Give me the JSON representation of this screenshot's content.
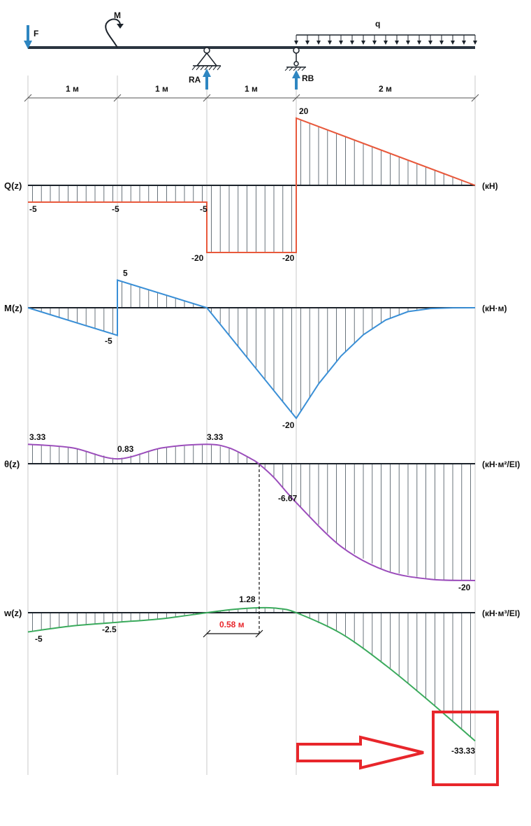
{
  "beam": {
    "force_label": "F",
    "moment_label": "M",
    "load_label": "q",
    "support_a_label": "RA",
    "support_b_label": "RB",
    "spans": [
      "1 м",
      "1 м",
      "1 м",
      "2 м"
    ]
  },
  "colors": {
    "beam": "#2b3540",
    "arrow": "#2e86c1",
    "shear": "#e8593c",
    "moment": "#3a8fd6",
    "slope": "#9b4dbb",
    "deflection": "#3aaa5c",
    "hatch": "#44505a",
    "highlight": "#e8262b",
    "grid": "#c8c8c8"
  },
  "chart_data": [
    {
      "type": "area",
      "name": "shear",
      "label": "Q(z)",
      "unit": "(кН)",
      "x_ticks": [
        0,
        1,
        2,
        3,
        5
      ],
      "points": [
        [
          0,
          -5
        ],
        [
          1,
          -5
        ],
        [
          2,
          -5
        ],
        [
          2,
          -20
        ],
        [
          3,
          -20
        ],
        [
          3,
          20
        ],
        [
          5,
          0
        ]
      ],
      "annotations": [
        {
          "x": 0,
          "y": -5,
          "text": "-5"
        },
        {
          "x": 1,
          "y": -5,
          "text": "-5"
        },
        {
          "x": 2,
          "y": -5,
          "text": "-5"
        },
        {
          "x": 2,
          "y": -20,
          "text": "-20"
        },
        {
          "x": 3,
          "y": -20,
          "text": "-20"
        },
        {
          "x": 3,
          "y": 20,
          "text": "20"
        }
      ]
    },
    {
      "type": "area",
      "name": "moment",
      "label": "M(z)",
      "unit": "(кН·м)",
      "points": [
        [
          0,
          0
        ],
        [
          1,
          -5
        ],
        [
          1,
          5
        ],
        [
          2,
          0
        ],
        [
          3,
          -20
        ],
        [
          3.25,
          -13.78
        ],
        [
          3.5,
          -8.75
        ],
        [
          3.75,
          -4.9
        ],
        [
          4,
          -2.22
        ],
        [
          4.25,
          -0.7
        ],
        [
          4.5,
          -0.14
        ],
        [
          4.75,
          -0.01
        ],
        [
          5,
          0
        ]
      ],
      "annotations": [
        {
          "x": 1,
          "y": -5,
          "text": "-5"
        },
        {
          "x": 1,
          "y": 5,
          "text": "5"
        },
        {
          "x": 3,
          "y": -20,
          "text": "-20"
        }
      ]
    },
    {
      "type": "area",
      "name": "slope",
      "label": "θ(z)",
      "unit": "(кН·м²/EI)",
      "points": [
        [
          0,
          3.33
        ],
        [
          0.5,
          2.71
        ],
        [
          1,
          0.83
        ],
        [
          1.5,
          2.71
        ],
        [
          2,
          3.33
        ],
        [
          2.25,
          2.7
        ],
        [
          2.5,
          0.8
        ],
        [
          2.58,
          0
        ],
        [
          2.75,
          -2.36
        ],
        [
          3,
          -6.67
        ],
        [
          3.5,
          -14.17
        ],
        [
          4,
          -18.33
        ],
        [
          4.5,
          -19.79
        ],
        [
          5,
          -20
        ]
      ],
      "annotations": [
        {
          "x": 0,
          "y": 3.33,
          "text": "3.33"
        },
        {
          "x": 1,
          "y": 0.83,
          "text": "0.83"
        },
        {
          "x": 2,
          "y": 3.33,
          "text": "3.33"
        },
        {
          "x": 3,
          "y": -6.67,
          "text": "-6.67"
        },
        {
          "x": 5,
          "y": -20,
          "text": "-20"
        }
      ]
    },
    {
      "type": "area",
      "name": "deflection",
      "label": "w(z)",
      "unit": "(кН·м³/EI)",
      "points": [
        [
          0,
          -5
        ],
        [
          0.5,
          -3.44
        ],
        [
          1,
          -2.5
        ],
        [
          1.5,
          -1.56
        ],
        [
          2,
          0
        ],
        [
          2.3,
          0.86
        ],
        [
          2.58,
          1.28
        ],
        [
          2.8,
          1.1
        ],
        [
          3,
          0
        ],
        [
          3.5,
          -5.4
        ],
        [
          4,
          -13.68
        ],
        [
          4.5,
          -23.25
        ],
        [
          5,
          -33.33
        ]
      ],
      "annotations": [
        {
          "x": 0,
          "y": -5,
          "text": "-5"
        },
        {
          "x": 1,
          "y": -2.5,
          "text": "-2.5"
        },
        {
          "x": 2.58,
          "y": 1.28,
          "text": "1.28"
        },
        {
          "x": 5,
          "y": -33.33,
          "text": "-33.33"
        }
      ],
      "dimension": {
        "from": 2,
        "to": 2.58,
        "text": "0.58 м"
      }
    }
  ]
}
